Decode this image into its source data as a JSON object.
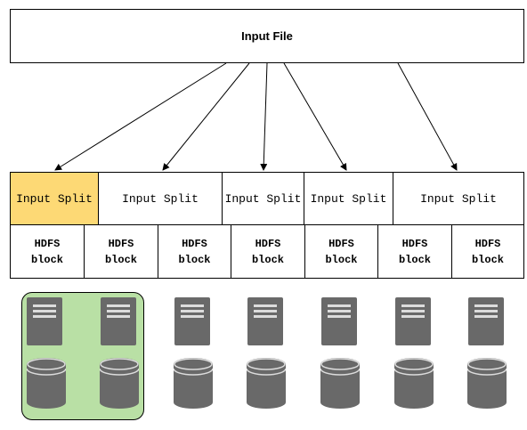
{
  "input_file": {
    "label": "Input File"
  },
  "input_splits": [
    {
      "label": "Input Split",
      "highlighted": true
    },
    {
      "label": "Input Split",
      "highlighted": false
    },
    {
      "label": "Input Split",
      "highlighted": false
    },
    {
      "label": "Input Split",
      "highlighted": false
    },
    {
      "label": "Input Split",
      "highlighted": false
    }
  ],
  "hdfs_blocks": [
    {
      "line1": "HDFS",
      "line2": "block"
    },
    {
      "line1": "HDFS",
      "line2": "block"
    },
    {
      "line1": "HDFS",
      "line2": "block"
    },
    {
      "line1": "HDFS",
      "line2": "block"
    },
    {
      "line1": "HDFS",
      "line2": "block"
    },
    {
      "line1": "HDFS",
      "line2": "block"
    },
    {
      "line1": "HDFS",
      "line2": "block"
    }
  ],
  "nodes": [
    {
      "icons": [
        "server-icon",
        "database-icon"
      ],
      "grouped": true
    },
    {
      "icons": [
        "server-icon",
        "database-icon"
      ],
      "grouped": true
    },
    {
      "icons": [
        "server-icon",
        "database-icon"
      ],
      "grouped": false
    },
    {
      "icons": [
        "server-icon",
        "database-icon"
      ],
      "grouped": false
    },
    {
      "icons": [
        "server-icon",
        "database-icon"
      ],
      "grouped": false
    },
    {
      "icons": [
        "server-icon",
        "database-icon"
      ],
      "grouped": false
    },
    {
      "icons": [
        "server-icon",
        "database-icon"
      ],
      "grouped": false
    }
  ],
  "colors": {
    "highlight_split": "#fdd975",
    "node_group": "#b9e0a5",
    "icon_body": "#696969",
    "icon_detail": "#dcdcdc"
  }
}
